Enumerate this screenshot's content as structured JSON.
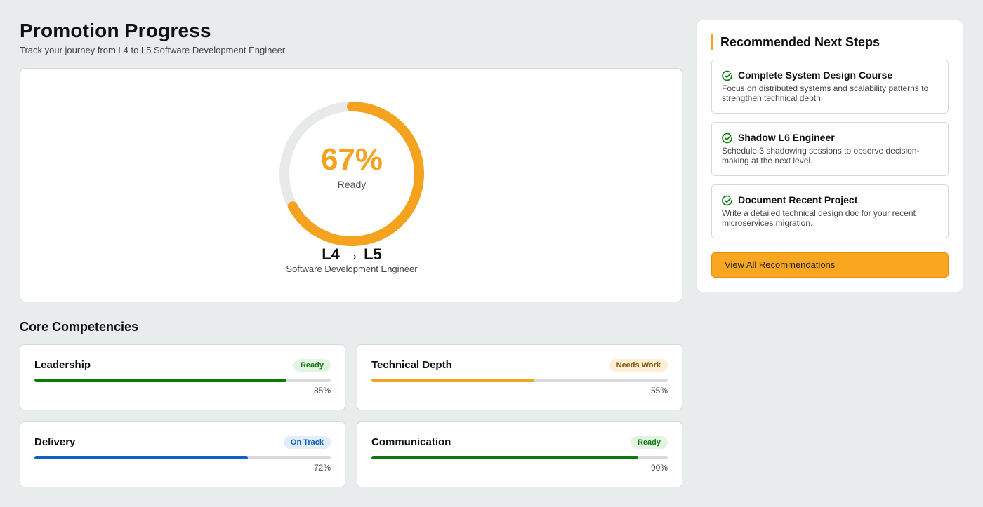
{
  "header": {
    "title": "Promotion Progress",
    "subtitle": "Track your journey from L4 to L5 Software Development Engineer"
  },
  "readiness": {
    "percent_value": 67,
    "percent_label": "67%",
    "status_label": "Ready",
    "level_change": "L4 → L5",
    "role": "Software Development Engineer",
    "color": "#f5a21f"
  },
  "competencies": {
    "title": "Core Competencies",
    "items": [
      {
        "name": "Leadership",
        "badge": "Ready",
        "badge_bg": "#e3f3e3",
        "badge_fg": "#117a11",
        "value": 85,
        "value_label": "85%",
        "bar_color": "#0b7a0b"
      },
      {
        "name": "Technical Depth",
        "badge": "Needs Work",
        "badge_bg": "#fdeed8",
        "badge_fg": "#8a5200",
        "value": 55,
        "value_label": "55%",
        "bar_color": "#f5a21f"
      },
      {
        "name": "Delivery",
        "badge": "On Track",
        "badge_bg": "#e2eefb",
        "badge_fg": "#0f5fb3",
        "value": 72,
        "value_label": "72%",
        "bar_color": "#0f62c5"
      },
      {
        "name": "Communication",
        "badge": "Ready",
        "badge_bg": "#e3f3e3",
        "badge_fg": "#117a11",
        "value": 90,
        "value_label": "90%",
        "bar_color": "#0b7a0b"
      }
    ]
  },
  "next_steps": {
    "title": "Recommended Next Steps",
    "items": [
      {
        "title": "Complete System Design Course",
        "description": "Focus on distributed systems and scalability patterns to strengthen technical depth."
      },
      {
        "title": "Shadow L6 Engineer",
        "description": "Schedule 3 shadowing sessions to observe decision-making at the next level."
      },
      {
        "title": "Document Recent Project",
        "description": "Write a detailed technical design doc for your recent microservices migration."
      }
    ],
    "view_all_label": "View All Recommendations",
    "icon": "check-circle-icon",
    "icon_color": "#117a11"
  }
}
